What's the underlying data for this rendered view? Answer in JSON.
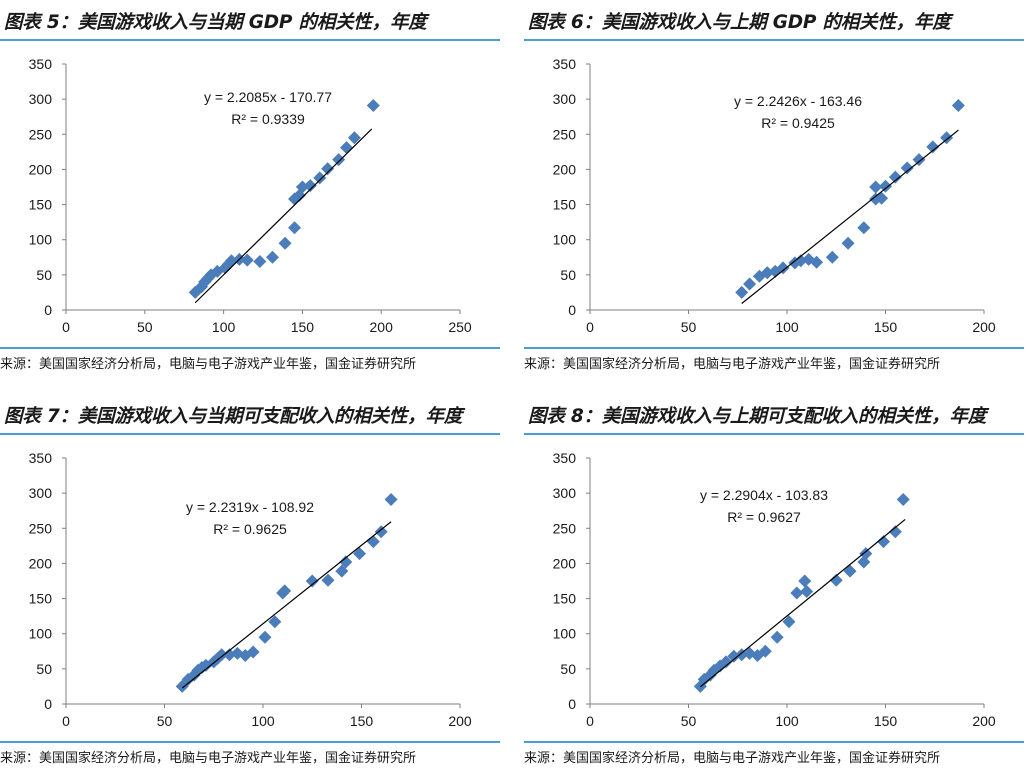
{
  "colors": {
    "rule": "#4a9fd1",
    "marker": "#4a7dba",
    "axis": "#7f7f7f",
    "text": "#1a1a1a"
  },
  "charts": [
    {
      "title": "图表 5：美国游戏收入与当期 GDP 的相关性，年度",
      "source": "来源：美国国家经济分析局，电脑与电子游戏产业年鉴，国金证券研究所",
      "chart_data": {
        "type": "scatter",
        "equation": "y = 2.2085x - 170.77",
        "r2": "R² = 0.9339",
        "slope": 2.2085,
        "intercept": -170.77,
        "xlim": [
          0,
          250
        ],
        "ylim": [
          0,
          350
        ],
        "xticks": [
          "0",
          "50",
          "100",
          "150",
          "200",
          "250"
        ],
        "yticks": [
          "0",
          "50",
          "100",
          "150",
          "200",
          "250",
          "300",
          "350"
        ],
        "trend_x": [
          82,
          194
        ],
        "points": [
          [
            82,
            25
          ],
          [
            86,
            33
          ],
          [
            88,
            40
          ],
          [
            90,
            45
          ],
          [
            92,
            50
          ],
          [
            96,
            55
          ],
          [
            101,
            60
          ],
          [
            103,
            65
          ],
          [
            105,
            70
          ],
          [
            110,
            72
          ],
          [
            115,
            71
          ],
          [
            123,
            69
          ],
          [
            131,
            75
          ],
          [
            139,
            95
          ],
          [
            145,
            117
          ],
          [
            145,
            158
          ],
          [
            148,
            163
          ],
          [
            150,
            175
          ],
          [
            155,
            177
          ],
          [
            161,
            188
          ],
          [
            166,
            201
          ],
          [
            173,
            214
          ],
          [
            178,
            231
          ],
          [
            183,
            245
          ],
          [
            195,
            291
          ]
        ]
      }
    },
    {
      "title": "图表 6：美国游戏收入与上期 GDP 的相关性，年度",
      "source": "来源：美国国家经济分析局，电脑与电子游戏产业年鉴，国金证券研究所",
      "chart_data": {
        "type": "scatter",
        "equation": "y = 2.2426x - 163.46",
        "r2": "R² = 0.9425",
        "slope": 2.2426,
        "intercept": -163.46,
        "xlim": [
          0,
          200
        ],
        "ylim": [
          0,
          350
        ],
        "xticks": [
          "0",
          "50",
          "100",
          "150",
          "200"
        ],
        "yticks": [
          "0",
          "50",
          "100",
          "150",
          "200",
          "250",
          "300",
          "350"
        ],
        "trend_x": [
          77,
          187
        ],
        "points": [
          [
            77,
            25
          ],
          [
            81,
            37
          ],
          [
            86,
            48
          ],
          [
            90,
            53
          ],
          [
            94,
            55
          ],
          [
            98,
            60
          ],
          [
            104,
            67
          ],
          [
            107,
            70
          ],
          [
            111,
            72
          ],
          [
            115,
            68
          ],
          [
            123,
            75
          ],
          [
            131,
            95
          ],
          [
            139,
            117
          ],
          [
            145,
            158
          ],
          [
            145,
            175
          ],
          [
            148,
            159
          ],
          [
            150,
            176
          ],
          [
            155,
            189
          ],
          [
            161,
            202
          ],
          [
            167,
            214
          ],
          [
            174,
            232
          ],
          [
            181,
            245
          ],
          [
            187,
            291
          ]
        ]
      }
    },
    {
      "title": "图表 7：美国游戏收入与当期可支配收入的相关性，年度",
      "source": "来源：美国国家经济分析局，电脑与电子游戏产业年鉴，国金证券研究所",
      "chart_data": {
        "type": "scatter",
        "equation": "y = 2.2319x - 108.92",
        "r2": "R² = 0.9625",
        "slope": 2.2319,
        "intercept": -108.92,
        "xlim": [
          0,
          200
        ],
        "ylim": [
          0,
          350
        ],
        "xticks": [
          "0",
          "50",
          "100",
          "150",
          "200"
        ],
        "yticks": [
          "0",
          "50",
          "100",
          "150",
          "200",
          "250",
          "300",
          "350"
        ],
        "trend_x": [
          59,
          165
        ],
        "points": [
          [
            59,
            25
          ],
          [
            62,
            35
          ],
          [
            65,
            41
          ],
          [
            67,
            48
          ],
          [
            69,
            52
          ],
          [
            71,
            55
          ],
          [
            75,
            60
          ],
          [
            77,
            65
          ],
          [
            79,
            70
          ],
          [
            83,
            70
          ],
          [
            87,
            72
          ],
          [
            91,
            69
          ],
          [
            95,
            74
          ],
          [
            101,
            95
          ],
          [
            106,
            117
          ],
          [
            110,
            158
          ],
          [
            111,
            161
          ],
          [
            125,
            175
          ],
          [
            133,
            176
          ],
          [
            140,
            189
          ],
          [
            142,
            202
          ],
          [
            149,
            214
          ],
          [
            156,
            231
          ],
          [
            160,
            245
          ],
          [
            165,
            291
          ]
        ]
      }
    },
    {
      "title": "图表 8：美国游戏收入与上期可支配收入的相关性，年度",
      "source": "来源：美国国家经济分析局，电脑与电子游戏产业年鉴，国金证券研究所",
      "chart_data": {
        "type": "scatter",
        "equation": "y = 2.2904x - 103.83",
        "r2": "R² = 0.9627",
        "slope": 2.2904,
        "intercept": -103.83,
        "xlim": [
          0,
          200
        ],
        "ylim": [
          0,
          350
        ],
        "xticks": [
          "0",
          "50",
          "100",
          "150",
          "200"
        ],
        "yticks": [
          "0",
          "50",
          "100",
          "150",
          "200",
          "250",
          "300",
          "350"
        ],
        "trend_x": [
          56,
          160
        ],
        "points": [
          [
            56,
            25
          ],
          [
            58,
            35
          ],
          [
            61,
            41
          ],
          [
            63,
            48
          ],
          [
            66,
            54
          ],
          [
            69,
            60
          ],
          [
            73,
            68
          ],
          [
            77,
            70
          ],
          [
            81,
            72
          ],
          [
            85,
            69
          ],
          [
            89,
            75
          ],
          [
            95,
            95
          ],
          [
            101,
            117
          ],
          [
            105,
            158
          ],
          [
            109,
            175
          ],
          [
            110,
            160
          ],
          [
            125,
            176
          ],
          [
            132,
            189
          ],
          [
            139,
            202
          ],
          [
            140,
            214
          ],
          [
            149,
            231
          ],
          [
            155,
            245
          ],
          [
            159,
            291
          ]
        ]
      }
    }
  ]
}
